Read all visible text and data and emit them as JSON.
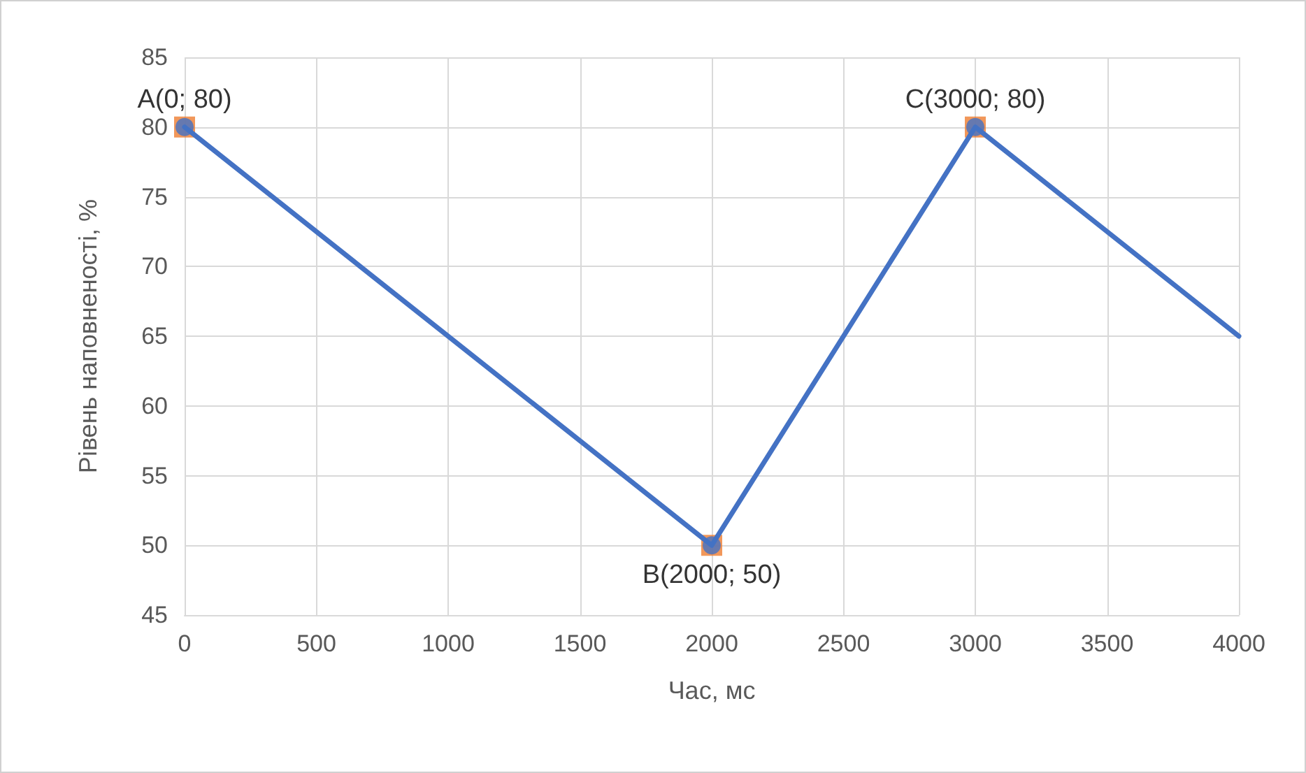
{
  "chart_data": {
    "type": "line",
    "xlabel": "Час, мс",
    "ylabel": "Рівень наповненості, %",
    "xlim": [
      0,
      4000
    ],
    "xticks": [
      0,
      500,
      1000,
      1500,
      2000,
      2500,
      3000,
      3500,
      4000
    ],
    "ylim": [
      45,
      85
    ],
    "yticks": [
      45,
      50,
      55,
      60,
      65,
      70,
      75,
      80,
      85
    ],
    "grid": true,
    "series": [
      {
        "type": "scatter",
        "marker": "square",
        "color": "#ed7d31",
        "x": [
          0,
          2000,
          3000
        ],
        "values": [
          80,
          50,
          80
        ]
      },
      {
        "marker": "none",
        "color": "#4472c4",
        "x": [
          0,
          2000,
          3000,
          4000
        ],
        "values": [
          80,
          50,
          80,
          65
        ]
      },
      {
        "type": "scatter",
        "marker": "circle",
        "color": "#4472c4",
        "x": [
          0,
          2000,
          3000
        ],
        "values": [
          80,
          50,
          80
        ]
      }
    ],
    "annotations": [
      {
        "text": "A(0; 80)",
        "x": 0,
        "y": 80
      },
      {
        "text": "B(2000; 50)",
        "x": 2000,
        "y": 50
      },
      {
        "text": "C(3000; 80)",
        "x": 3000,
        "y": 80
      }
    ]
  }
}
